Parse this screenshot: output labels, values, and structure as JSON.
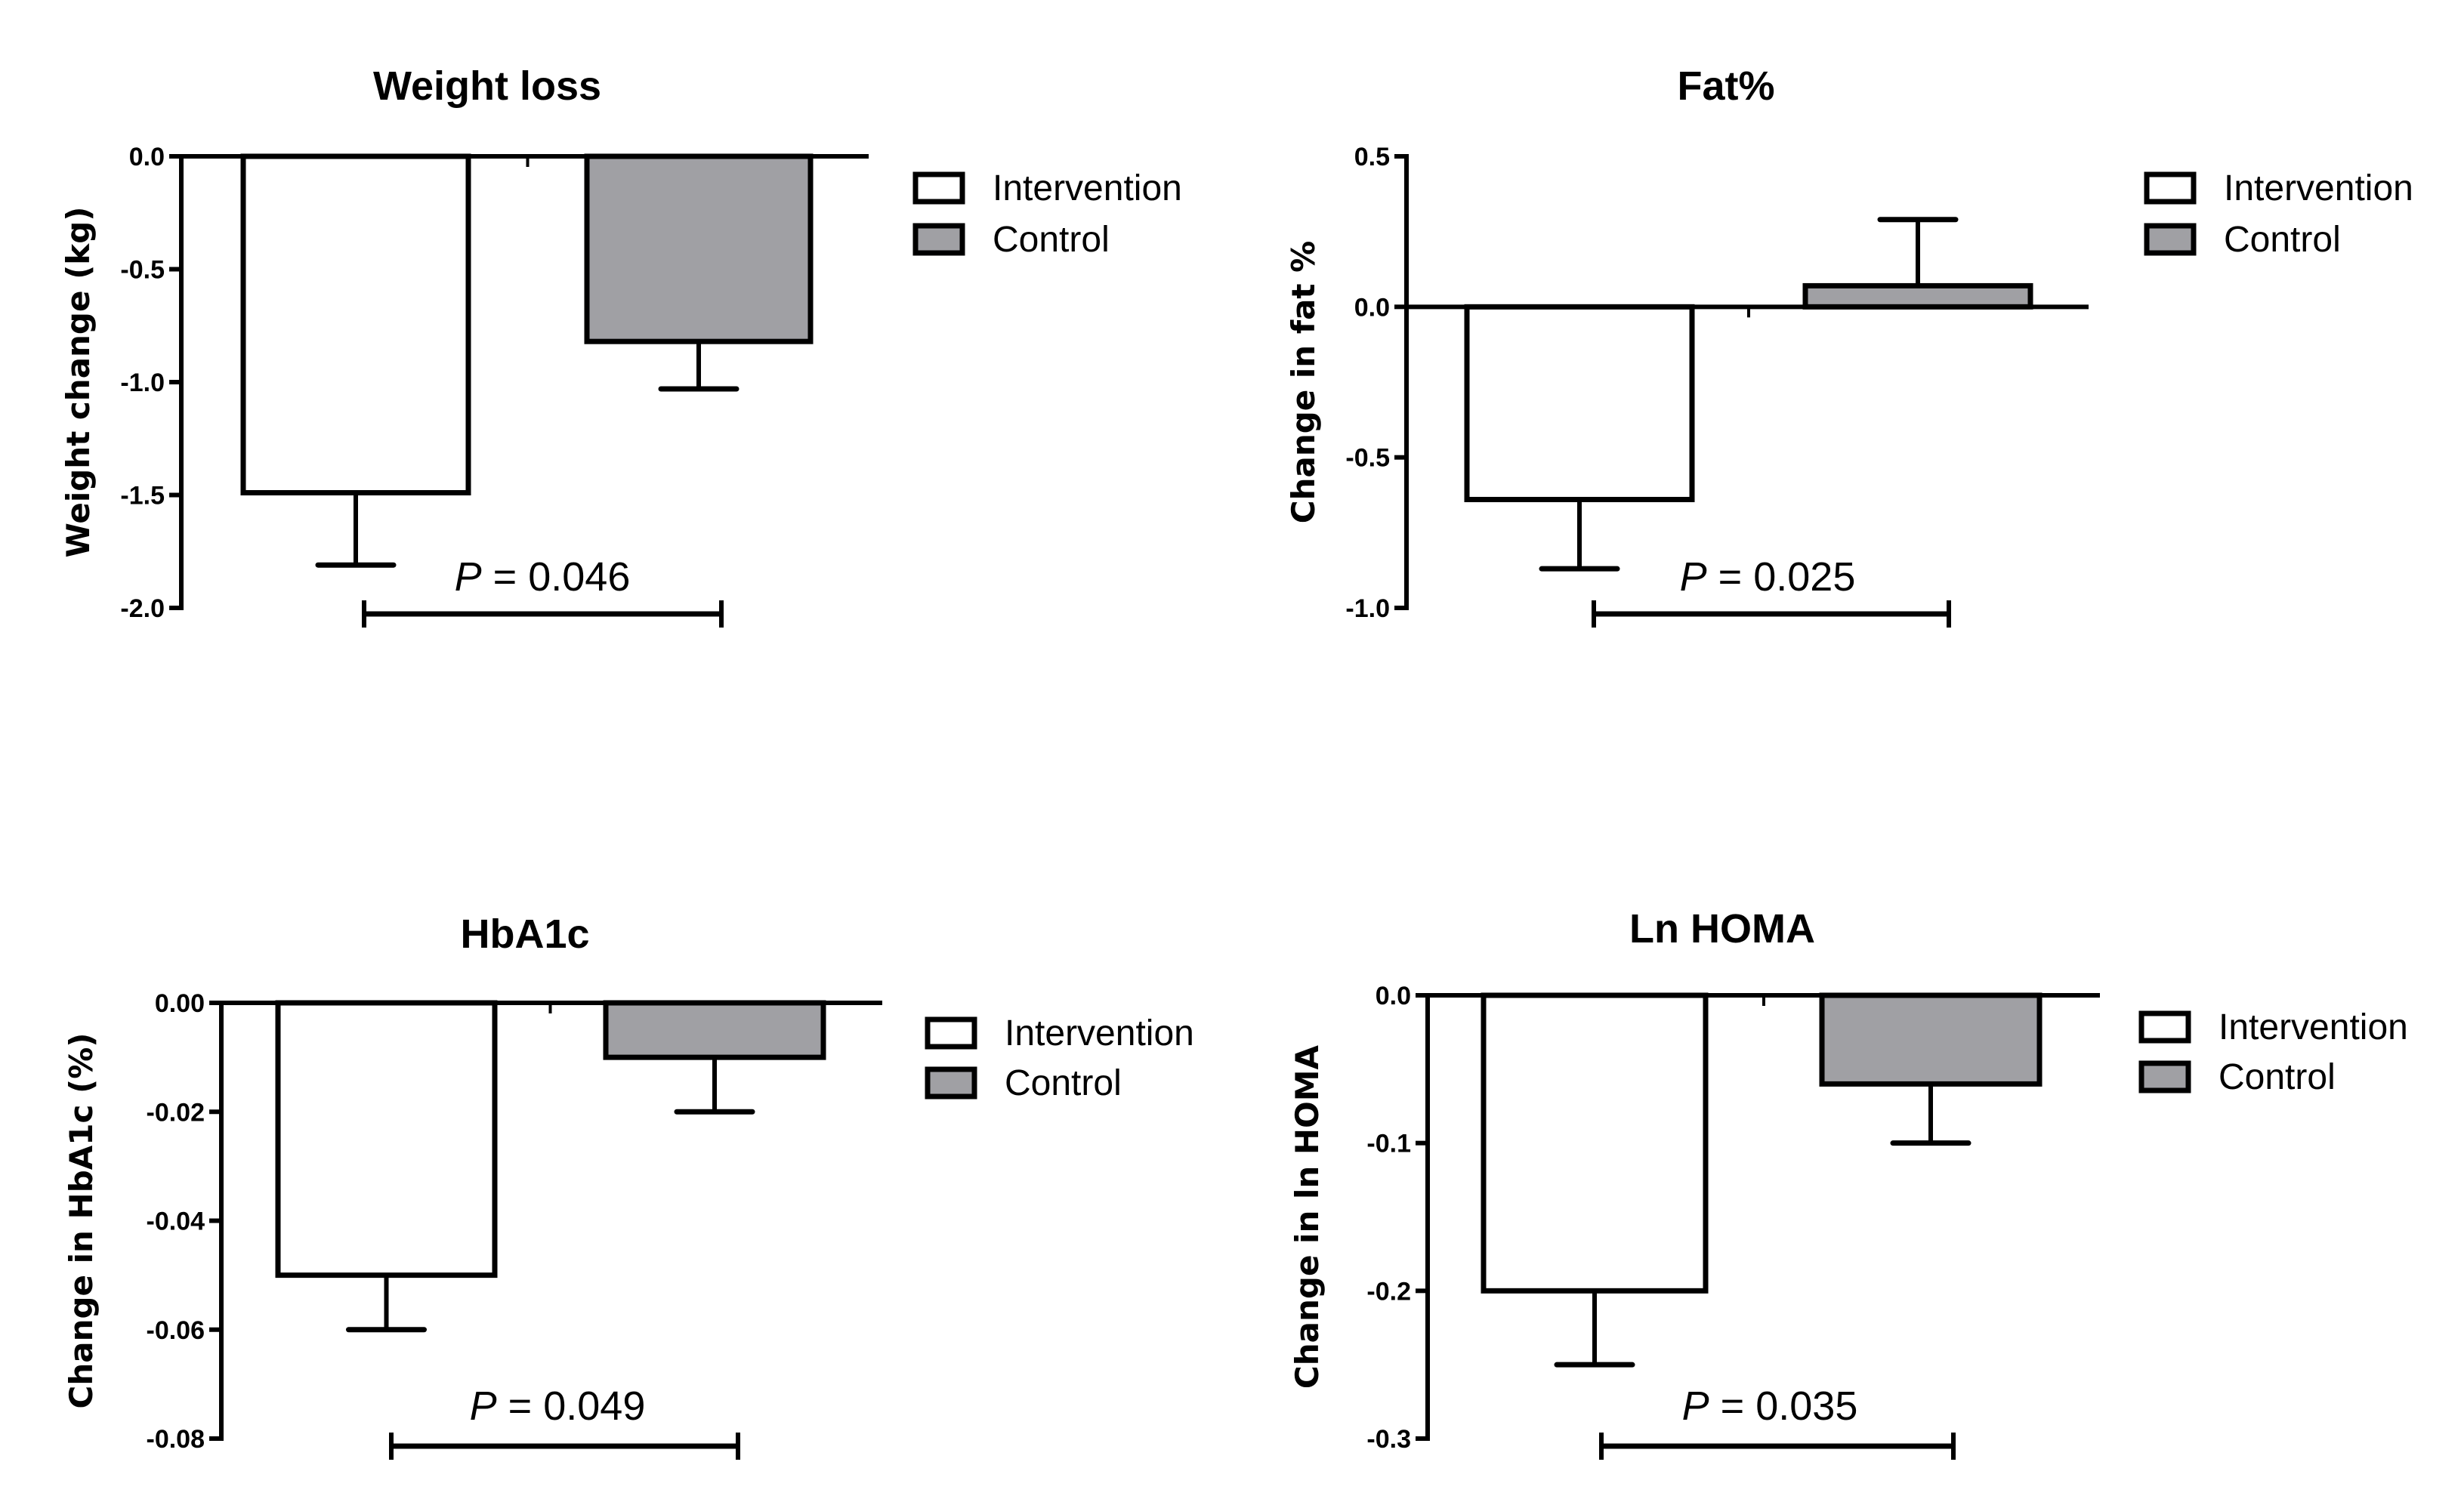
{
  "colors": {
    "intervention": "#ffffff",
    "control": "#a0a0a4",
    "stroke": "#000000"
  },
  "legend": [
    "Intervention",
    "Control"
  ],
  "chart_data": [
    {
      "type": "bar",
      "title": "Weight loss",
      "ylabel": "Weight change (kg)",
      "xlabel": "",
      "ylim": [
        -2.0,
        0.0
      ],
      "yticks": [
        "0.0",
        "-0.5",
        "-1.0",
        "-1.5",
        "-2.0"
      ],
      "ytick_values": [
        0.0,
        -0.5,
        -1.0,
        -1.5,
        -2.0
      ],
      "categories": [
        "Intervention",
        "Control"
      ],
      "series": [
        {
          "name": "Intervention",
          "values": [
            -1.49
          ],
          "error_to": [
            -1.81
          ]
        },
        {
          "name": "Control",
          "values": [
            -0.82
          ],
          "error_to": [
            -1.03
          ]
        }
      ],
      "annotation": {
        "p_label": "P",
        "p_value": "= 0.046"
      },
      "legend_position": "top-right"
    },
    {
      "type": "bar",
      "title": "Fat%",
      "ylabel": "Change in fat %",
      "xlabel": "",
      "ylim": [
        -1.0,
        0.5
      ],
      "yticks": [
        "0.5",
        "0.0",
        "-0.5",
        "-1.0"
      ],
      "ytick_values": [
        0.5,
        0.0,
        -0.5,
        -1.0
      ],
      "categories": [
        "Intervention",
        "Control"
      ],
      "series": [
        {
          "name": "Intervention",
          "values": [
            -0.64
          ],
          "error_to": [
            -0.87
          ]
        },
        {
          "name": "Control",
          "values": [
            0.07
          ],
          "error_to": [
            0.29
          ]
        }
      ],
      "annotation": {
        "p_label": "P",
        "p_value": "= 0.025"
      },
      "legend_position": "top-right"
    },
    {
      "type": "bar",
      "title": "HbA1c",
      "ylabel": "Change in HbA1c (%)",
      "xlabel": "",
      "ylim": [
        -0.08,
        0.0
      ],
      "yticks": [
        "0.00",
        "-0.02",
        "-0.04",
        "-0.06",
        "-0.08"
      ],
      "ytick_values": [
        0.0,
        -0.02,
        -0.04,
        -0.06,
        -0.08
      ],
      "categories": [
        "Intervention",
        "Control"
      ],
      "series": [
        {
          "name": "Intervention",
          "values": [
            -0.05
          ],
          "error_to": [
            -0.06
          ]
        },
        {
          "name": "Control",
          "values": [
            -0.01
          ],
          "error_to": [
            -0.02
          ]
        }
      ],
      "annotation": {
        "p_label": "P",
        "p_value": "= 0.049"
      },
      "legend_position": "top-right"
    },
    {
      "type": "bar",
      "title": "Ln HOMA",
      "ylabel": "Change in ln HOMA",
      "xlabel": "",
      "ylim": [
        -0.3,
        0.0
      ],
      "yticks": [
        "0.0",
        "-0.1",
        "-0.2",
        "-0.3"
      ],
      "ytick_values": [
        0.0,
        -0.1,
        -0.2,
        -0.3
      ],
      "categories": [
        "Intervention",
        "Control"
      ],
      "series": [
        {
          "name": "Intervention",
          "values": [
            -0.2
          ],
          "error_to": [
            -0.25
          ]
        },
        {
          "name": "Control",
          "values": [
            -0.06
          ],
          "error_to": [
            -0.1
          ]
        }
      ],
      "annotation": {
        "p_label": "P",
        "p_value": "= 0.035"
      },
      "legend_position": "top-right"
    }
  ]
}
